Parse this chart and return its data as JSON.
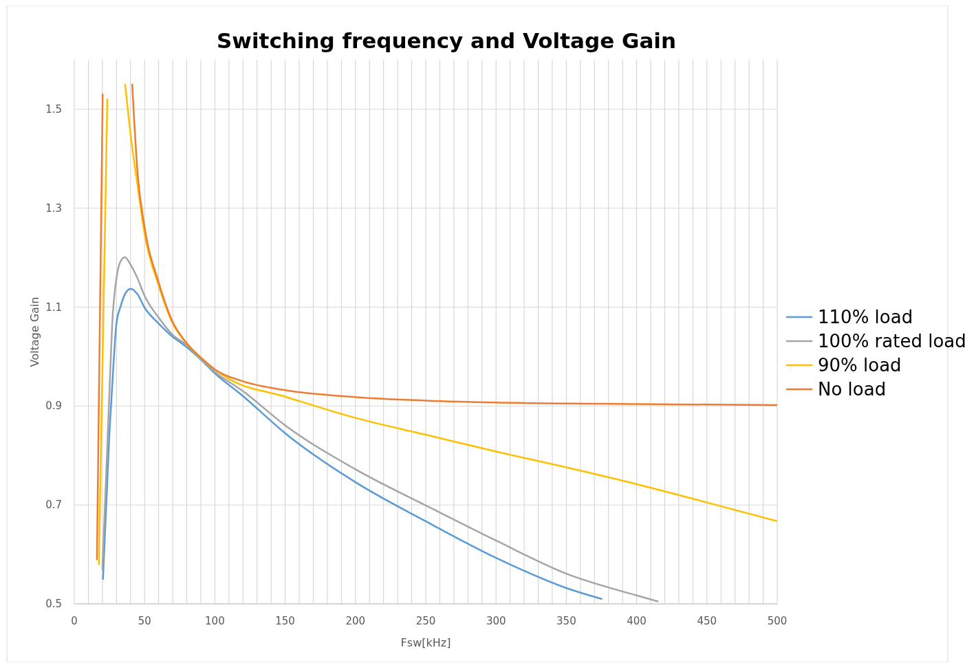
{
  "chart_data": {
    "type": "line",
    "title": "Switching frequency and Voltage Gain",
    "xlabel": "Fsw[kHz]",
    "ylabel": "Voltage Gain",
    "xlim": [
      0,
      500
    ],
    "ylim": [
      0.5,
      1.6
    ],
    "xticks": [
      0,
      {
        "value": 10,
        "label": null
      },
      {
        "value": 20,
        "label": null
      },
      {
        "value": 30,
        "label": null
      },
      {
        "value": 40,
        "label": null
      },
      50,
      {
        "value": 60,
        "label": null
      },
      {
        "value": 70,
        "label": null
      },
      {
        "value": 80,
        "label": null
      },
      {
        "value": 90,
        "label": null
      },
      100,
      {
        "value": 110,
        "label": null
      },
      {
        "value": 120,
        "label": null
      },
      {
        "value": 130,
        "label": null
      },
      {
        "value": 140,
        "label": null
      },
      150,
      {
        "value": 160,
        "label": null
      },
      {
        "value": 170,
        "label": null
      },
      {
        "value": 180,
        "label": null
      },
      {
        "value": 190,
        "label": null
      },
      200,
      {
        "value": 210,
        "label": null
      },
      {
        "value": 220,
        "label": null
      },
      {
        "value": 230,
        "label": null
      },
      {
        "value": 240,
        "label": null
      },
      250,
      {
        "value": 260,
        "label": null
      },
      {
        "value": 270,
        "label": null
      },
      {
        "value": 280,
        "label": null
      },
      {
        "value": 290,
        "label": null
      },
      300,
      {
        "value": 310,
        "label": null
      },
      {
        "value": 320,
        "label": null
      },
      {
        "value": 330,
        "label": null
      },
      {
        "value": 340,
        "label": null
      },
      350,
      {
        "value": 360,
        "label": null
      },
      {
        "value": 370,
        "label": null
      },
      {
        "value": 380,
        "label": null
      },
      {
        "value": 390,
        "label": null
      },
      400,
      {
        "value": 410,
        "label": null
      },
      {
        "value": 420,
        "label": null
      },
      {
        "value": 430,
        "label": null
      },
      {
        "value": 440,
        "label": null
      },
      450,
      {
        "value": 460,
        "label": null
      },
      {
        "value": 470,
        "label": null
      },
      {
        "value": 480,
        "label": null
      },
      {
        "value": 490,
        "label": null
      },
      500
    ],
    "yticks": [
      0.5,
      0.7,
      0.9,
      1.1,
      1.3,
      1.5
    ],
    "grid": true,
    "legend": "right",
    "marker": "none",
    "line_style": "solid",
    "series": [
      {
        "name": "110% load",
        "color": "#5b9bd5",
        "x": [
          20.4,
          25,
          27,
          30,
          33,
          36,
          40,
          45,
          50,
          60,
          70,
          80,
          90,
          100,
          120,
          150,
          200,
          250,
          300,
          350,
          375
        ],
        "values": [
          0.55,
          0.845,
          0.942,
          1.067,
          1.102,
          1.126,
          1.137,
          1.126,
          1.099,
          1.067,
          1.04,
          1.019,
          0.994,
          0.966,
          0.92,
          0.845,
          0.746,
          0.667,
          0.593,
          0.532,
          0.51
        ]
      },
      {
        "name": "100% rated load",
        "color": "#a5a5a5",
        "x": [
          20,
          25,
          27,
          30,
          33,
          36,
          40,
          45,
          50,
          60,
          70,
          80,
          90,
          100,
          120,
          150,
          200,
          250,
          300,
          350,
          400,
          415
        ],
        "values": [
          0.57,
          0.928,
          1.067,
          1.158,
          1.193,
          1.201,
          1.186,
          1.158,
          1.123,
          1.079,
          1.044,
          1.023,
          0.995,
          0.969,
          0.93,
          0.861,
          0.772,
          0.699,
          0.628,
          0.561,
          0.517,
          0.505
        ]
      },
      {
        "name": "90% load",
        "color": "#ffc000",
        "x": [
          17.5,
          23.5,
          30,
          36.2,
          40,
          45,
          50,
          60,
          70,
          80,
          90,
          100,
          110,
          150,
          200,
          250,
          300,
          350,
          400,
          450,
          500
        ],
        "values": [
          0.58,
          1.52,
          null,
          1.55,
          1.45,
          1.346,
          1.248,
          1.144,
          1.067,
          1.026,
          0.998,
          0.974,
          0.955,
          0.919,
          0.876,
          0.842,
          0.808,
          0.776,
          0.742,
          0.705,
          0.667
        ]
      },
      {
        "name": "No load",
        "color": "#ed7d31",
        "x": [
          16.1,
          20.2,
          30,
          41.2,
          45,
          50,
          60,
          70,
          80,
          90,
          100,
          120,
          150,
          200,
          250,
          300,
          400,
          500
        ],
        "values": [
          0.59,
          1.53,
          null,
          1.55,
          1.372,
          1.262,
          1.15,
          1.07,
          1.027,
          0.998,
          0.974,
          0.95,
          0.932,
          0.918,
          0.911,
          0.907,
          0.904,
          0.902
        ]
      }
    ]
  }
}
